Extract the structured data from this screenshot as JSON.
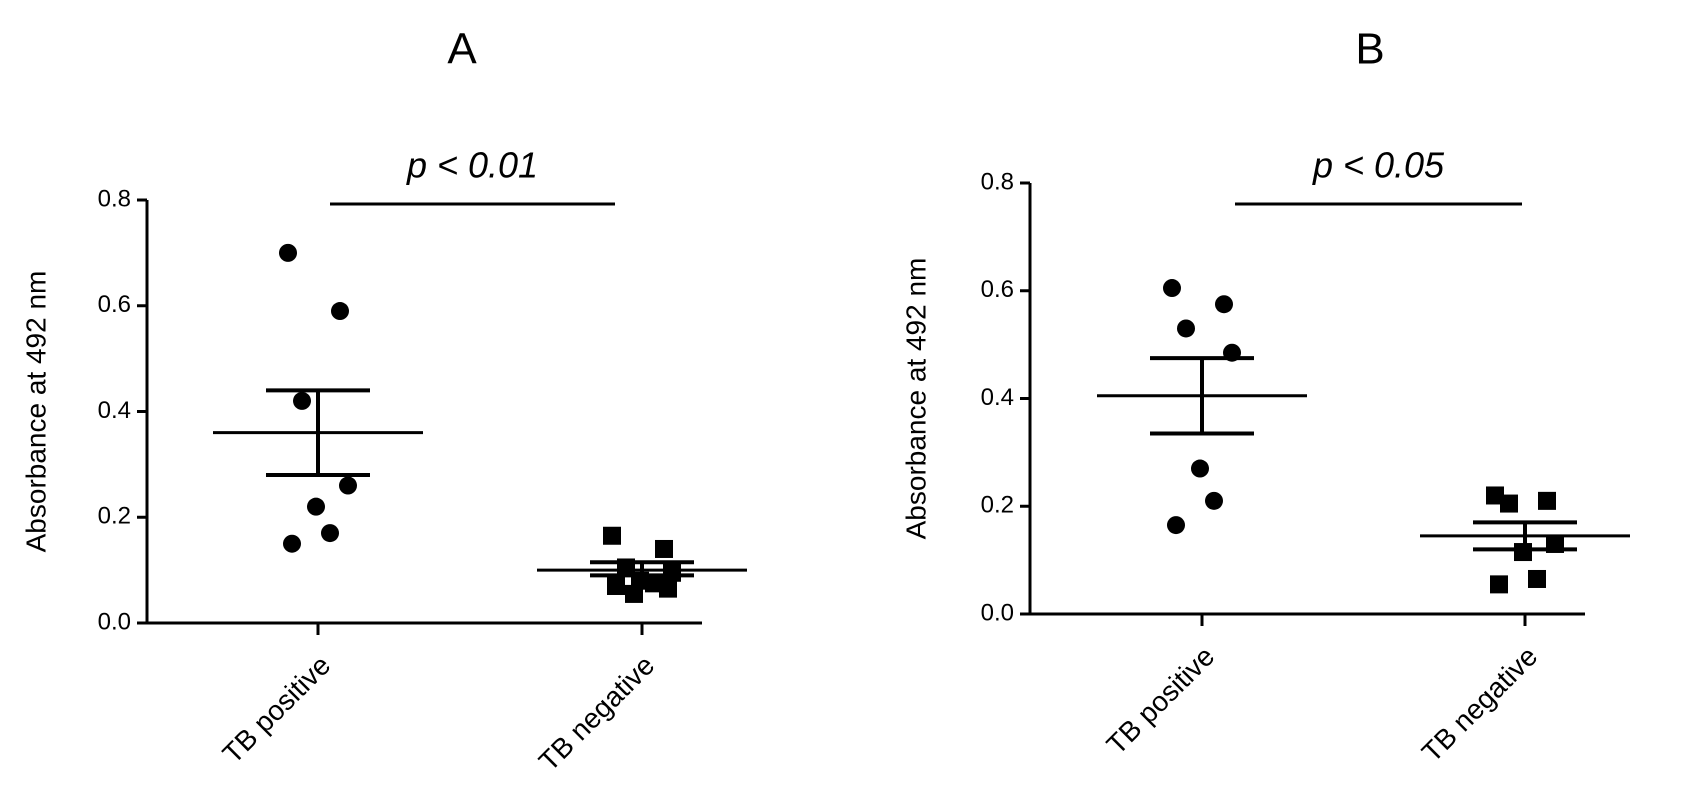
{
  "chart_data": [
    {
      "type": "scatter",
      "panel": "A",
      "ylabel": "Absorbance at 492 nm",
      "ylim": [
        0,
        0.8
      ],
      "yticks": [
        "0.0",
        "0.2",
        "0.4",
        "0.6",
        "0.8"
      ],
      "categories": [
        "TB positive",
        "TB negative"
      ],
      "significance": "p < 0.01",
      "series": [
        {
          "category": "TB positive",
          "marker": "circle",
          "values": [
            0.7,
            0.59,
            0.42,
            0.26,
            0.22,
            0.17,
            0.15
          ],
          "mean": 0.36,
          "sem_upper": 0.44,
          "sem_lower": 0.28
        },
        {
          "category": "TB negative",
          "marker": "square",
          "values": [
            0.165,
            0.14,
            0.105,
            0.095,
            0.08,
            0.075,
            0.07,
            0.065,
            0.055
          ],
          "mean": 0.1,
          "sem_upper": 0.115,
          "sem_lower": 0.09
        }
      ]
    },
    {
      "type": "scatter",
      "panel": "B",
      "ylabel": "Absorbance at 492 nm",
      "ylim": [
        0,
        0.8
      ],
      "yticks": [
        "0.0",
        "0.2",
        "0.4",
        "0.6",
        "0.8"
      ],
      "categories": [
        "TB positive",
        "TB negative"
      ],
      "significance": "p < 0.05",
      "series": [
        {
          "category": "TB positive",
          "marker": "circle",
          "values": [
            0.605,
            0.575,
            0.53,
            0.485,
            0.27,
            0.21,
            0.165
          ],
          "mean": 0.405,
          "sem_upper": 0.475,
          "sem_lower": 0.335
        },
        {
          "category": "TB negative",
          "marker": "square",
          "values": [
            0.22,
            0.21,
            0.205,
            0.13,
            0.115,
            0.065,
            0.055
          ],
          "mean": 0.145,
          "sem_upper": 0.17,
          "sem_lower": 0.12
        }
      ]
    }
  ]
}
